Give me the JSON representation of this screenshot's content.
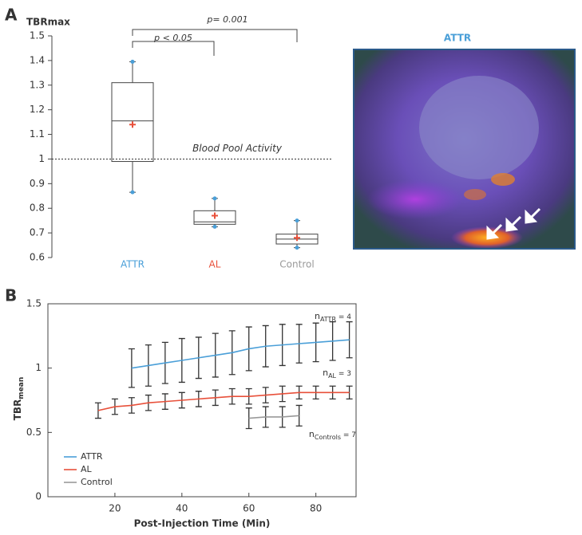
{
  "chart_data": [
    {
      "type": "box",
      "panel": "A",
      "y_label": "TBRmax",
      "categories": [
        "ATTR",
        "AL",
        "Control"
      ],
      "colors": [
        "#4a9fd8",
        "#e8503a",
        "#999999"
      ],
      "mean_color": "#e8503a",
      "point_color": "#4a9fd8",
      "stats": {
        "min": [
          0.865,
          0.725,
          0.64
        ],
        "q1": [
          0.99,
          0.735,
          0.655
        ],
        "median": [
          1.155,
          0.745,
          0.675
        ],
        "q3": [
          1.31,
          0.79,
          0.695
        ],
        "max": [
          1.395,
          0.84,
          0.75
        ],
        "mean": [
          1.14,
          0.77,
          0.68
        ]
      },
      "ylim": [
        0.6,
        1.5
      ],
      "yticks": [
        0.6,
        0.7,
        0.8,
        0.9,
        1,
        1.1,
        1.2,
        1.3,
        1.4,
        1.5
      ],
      "reference_line": {
        "value": 1,
        "label": "Blood Pool Activity"
      },
      "annotations": [
        "p < 0.05",
        "p= 0.001"
      ],
      "image_title": "ATTR"
    },
    {
      "type": "line",
      "panel": "B",
      "x_label": "Post-Injection Time (Min)",
      "y_label": {
        "text": "TBR",
        "sub": "mean"
      },
      "xlim": [
        0,
        92
      ],
      "xticks": [
        20,
        40,
        60,
        80
      ],
      "ylim": [
        0,
        1.5
      ],
      "yticks": [
        0,
        0.5,
        1,
        1.5
      ],
      "legend": "lower left",
      "series": [
        {
          "name": "ATTR",
          "color": "#4a9fd8",
          "x": [
            25,
            30,
            35,
            40,
            45,
            50,
            55,
            60,
            65,
            70,
            75,
            80,
            85,
            90
          ],
          "values": [
            1.0,
            1.02,
            1.04,
            1.06,
            1.08,
            1.1,
            1.12,
            1.15,
            1.17,
            1.18,
            1.19,
            1.2,
            1.21,
            1.22
          ],
          "errors": [
            0.15,
            0.16,
            0.16,
            0.17,
            0.16,
            0.17,
            0.17,
            0.17,
            0.16,
            0.16,
            0.15,
            0.15,
            0.15,
            0.14
          ],
          "n_label": {
            "text": "n",
            "sub": "ATTR",
            "rest": " = 4"
          }
        },
        {
          "name": "AL",
          "color": "#e8503a",
          "x": [
            15,
            20,
            25,
            30,
            35,
            40,
            45,
            50,
            55,
            60,
            65,
            70,
            75,
            80,
            85,
            90
          ],
          "values": [
            0.67,
            0.7,
            0.71,
            0.73,
            0.74,
            0.75,
            0.76,
            0.77,
            0.78,
            0.78,
            0.79,
            0.8,
            0.81,
            0.81,
            0.81,
            0.81
          ],
          "errors": [
            0.06,
            0.06,
            0.06,
            0.06,
            0.06,
            0.06,
            0.06,
            0.06,
            0.06,
            0.06,
            0.06,
            0.06,
            0.05,
            0.05,
            0.05,
            0.05
          ],
          "n_label": {
            "text": "n",
            "sub": "AL",
            "rest": " = 3"
          }
        },
        {
          "name": "Control",
          "color": "#999999",
          "x": [
            60,
            65,
            70,
            75
          ],
          "values": [
            0.61,
            0.62,
            0.62,
            0.63
          ],
          "errors": [
            0.08,
            0.08,
            0.08,
            0.08
          ],
          "n_label": {
            "text": "n",
            "sub": "Controls",
            "rest": " = 7"
          }
        }
      ]
    }
  ]
}
